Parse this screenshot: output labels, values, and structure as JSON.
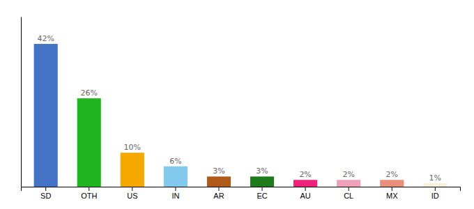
{
  "chart_data": {
    "type": "bar",
    "categories": [
      "SD",
      "OTH",
      "US",
      "IN",
      "AR",
      "EC",
      "AU",
      "CL",
      "MX",
      "ID"
    ],
    "values": [
      42,
      26,
      10,
      6,
      3,
      3,
      2,
      2,
      2,
      1
    ],
    "value_labels": [
      "42%",
      "26%",
      "10%",
      "6%",
      "3%",
      "3%",
      "2%",
      "2%",
      "2%",
      "1%"
    ],
    "colors": [
      "#4472c4",
      "#21b521",
      "#f5a800",
      "#82caed",
      "#b05a1a",
      "#1e7c1e",
      "#f0207a",
      "#f0a0b8",
      "#e8907a",
      "#f5f0d8"
    ],
    "ylim": [
      0,
      50
    ],
    "data_labels": true,
    "tick_labels": "x"
  }
}
